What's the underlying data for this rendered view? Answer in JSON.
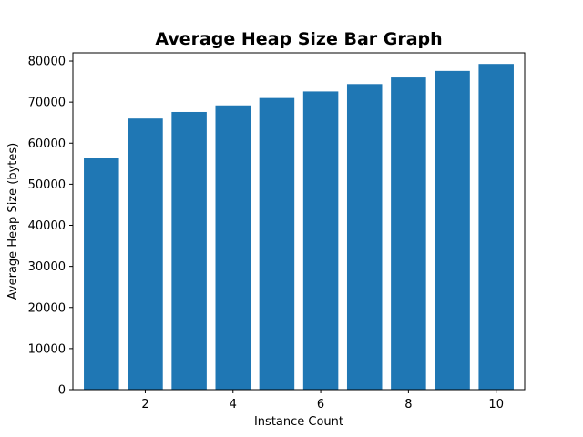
{
  "chart_data": {
    "type": "bar",
    "title": "Average Heap Size Bar Graph",
    "xlabel": "Instance Count",
    "ylabel": "Average Heap Size (bytes)",
    "x": [
      1,
      2,
      3,
      4,
      5,
      6,
      7,
      8,
      9,
      10
    ],
    "values": [
      56300,
      66000,
      67600,
      69200,
      71000,
      72600,
      74400,
      76000,
      77600,
      79300
    ],
    "xlim": [
      0.35,
      10.65
    ],
    "ylim": [
      0,
      82000
    ],
    "xticks": [
      "2",
      "4",
      "6",
      "8",
      "10"
    ],
    "yticks": [
      "0",
      "10000",
      "20000",
      "30000",
      "40000",
      "50000",
      "60000",
      "70000",
      "80000"
    ],
    "bar_color": "#1f77b4",
    "grid": false,
    "legend": "none"
  }
}
